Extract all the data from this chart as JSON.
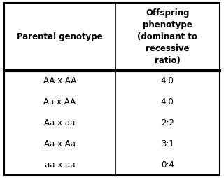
{
  "col1_header": "Parental genotype",
  "col2_header": "Offspring\nphenotype\n(dominant to\nrecessive\nratio)",
  "rows": [
    [
      "AA x AA",
      "4:0"
    ],
    [
      "Aa x AA",
      "4:0"
    ],
    [
      "Aa x aa",
      "2:2"
    ],
    [
      "Aa x Aa",
      "3:1"
    ],
    [
      "aa x aa",
      "0:4"
    ]
  ],
  "bg_color": "#ffffff",
  "border_color": "#000000",
  "header_fontsize": 8.5,
  "body_fontsize": 8.5,
  "fig_width": 3.2,
  "fig_height": 2.54,
  "dpi": 100
}
